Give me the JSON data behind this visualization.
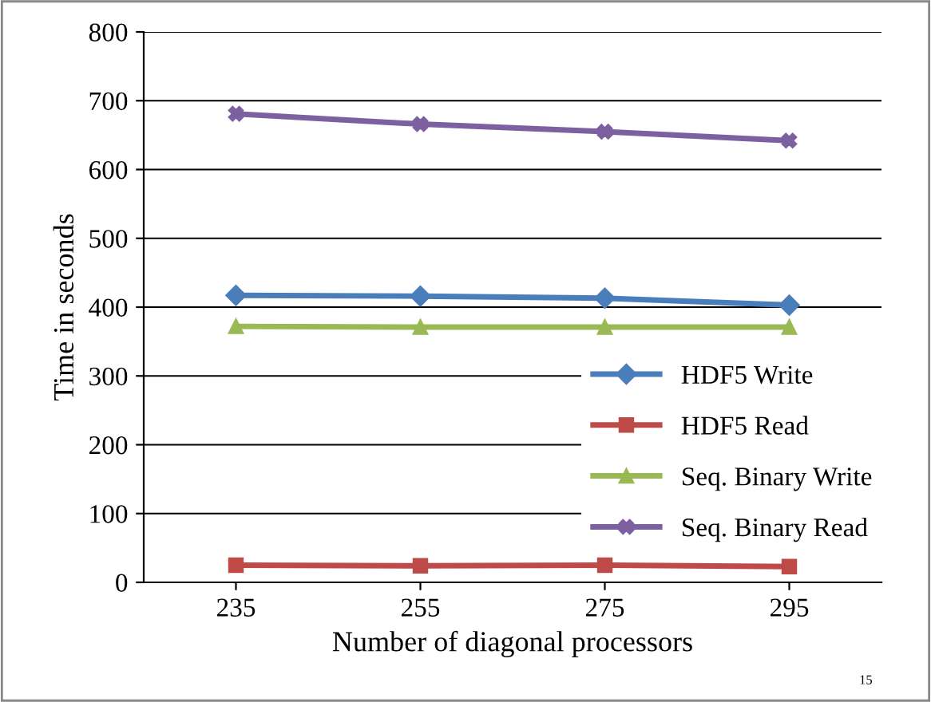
{
  "chart_data": {
    "type": "line",
    "xlabel": "Number of diagonal processors",
    "ylabel": "Time in seconds",
    "categories": [
      "235",
      "255",
      "275",
      "295"
    ],
    "series": [
      {
        "name": "HDF5 Write",
        "color": "#4a7ebb",
        "marker": "diamond",
        "values": [
          417,
          416,
          413,
          403
        ]
      },
      {
        "name": "HDF5 Read",
        "color": "#be4b48",
        "marker": "square",
        "values": [
          25,
          24,
          25,
          23
        ]
      },
      {
        "name": "Seq. Binary Write",
        "color": "#98b954",
        "marker": "triangle",
        "values": [
          372,
          371,
          371,
          371
        ]
      },
      {
        "name": "Seq. Binary Read",
        "color": "#7d60a0",
        "marker": "cross",
        "values": [
          681,
          666,
          655,
          642
        ]
      }
    ],
    "ylim": [
      0,
      800
    ],
    "yticks": [
      0,
      100,
      200,
      300,
      400,
      500,
      600,
      700,
      800
    ],
    "grid": "y",
    "legend": "bottom right",
    "annotations": [
      "15"
    ]
  }
}
